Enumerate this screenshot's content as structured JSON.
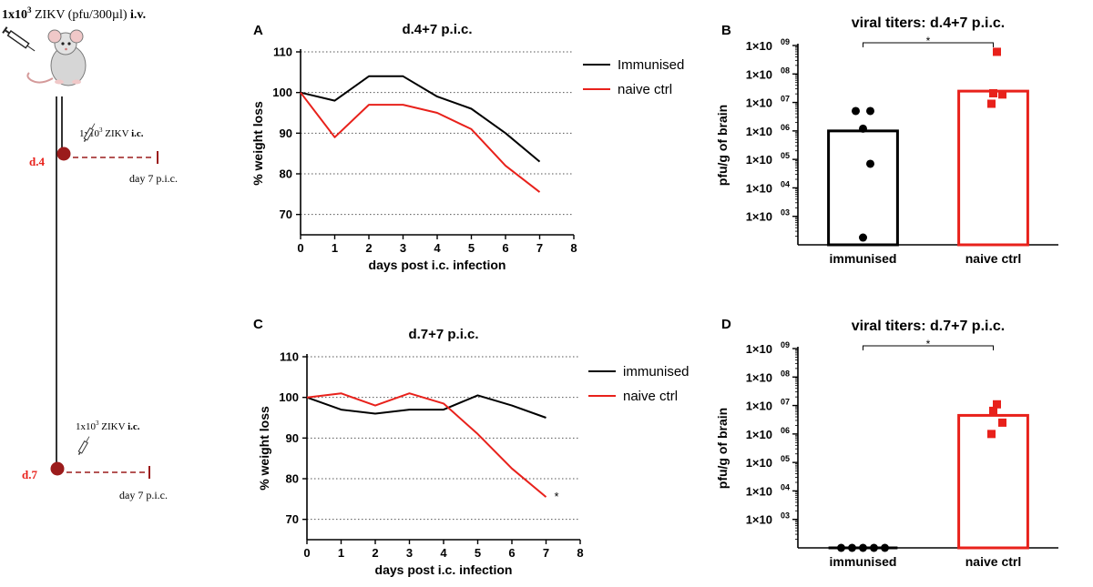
{
  "colors": {
    "black": "#000000",
    "red": "#e8211b",
    "dark_red": "#9b1b1b",
    "grid": "#555555"
  },
  "schematic": {
    "dose_prefix": "1x10",
    "dose_exp": "3",
    "dose_mid": " ZIKV (pfu/300µl) ",
    "dose_route": "i.v.",
    "syringe_icon": "syringe-icon",
    "mouse_icon": "mouse-icon",
    "challenges": [
      {
        "day_label": "d.4",
        "dose_prefix": "1x10",
        "dose_exp": "3",
        "dose_mid": " ZIKV ",
        "dose_route": "i.c.",
        "harvest_label": "day 7 p.i.c."
      },
      {
        "day_label": "d.7",
        "dose_prefix": "1x10",
        "dose_exp": "3",
        "dose_mid": " ZIKV ",
        "dose_route": "i.c.",
        "harvest_label": "day 7 p.i.c."
      }
    ]
  },
  "chart_data": [
    {
      "panel": "A",
      "type": "line",
      "title": "d.4+7 p.i.c.",
      "xlabel": "days post i.c. infection",
      "ylabel": "% weight loss",
      "xlim": [
        0,
        8
      ],
      "ylim": [
        65,
        110
      ],
      "xticks": [
        "0",
        "1",
        "2",
        "3",
        "4",
        "5",
        "6",
        "7",
        "8"
      ],
      "yticks": [
        "70",
        "80",
        "90",
        "100",
        "110"
      ],
      "grid": "horizontal dotted",
      "legend": "top-right",
      "series": [
        {
          "name": "Immunised",
          "color": "#000000",
          "x": [
            0,
            1,
            2,
            3,
            4,
            5,
            6,
            7
          ],
          "y": [
            100,
            98,
            104,
            104,
            99,
            96,
            90,
            83
          ]
        },
        {
          "name": "naive ctrl",
          "color": "#e8211b",
          "x": [
            0,
            1,
            2,
            3,
            4,
            5,
            6,
            7
          ],
          "y": [
            100,
            89,
            97,
            97,
            95,
            91,
            82,
            75.5
          ]
        }
      ]
    },
    {
      "panel": "B",
      "type": "bar",
      "title": "viral titers: d.4+7 p.i.c.",
      "ylabel": "pfu/g of brain",
      "yscale": "log",
      "ylim_log10": [
        2,
        9
      ],
      "ytick_mantissa": "1×10",
      "ytick_exps": [
        "03",
        "04",
        "05",
        "06",
        "07",
        "08",
        "09"
      ],
      "categories": [
        "immunised",
        "naive ctrl"
      ],
      "values": [
        1000000,
        25000000
      ],
      "colors": [
        "#000000",
        "#e8211b"
      ],
      "points": [
        [
          5000000,
          5000000,
          1200000,
          70000,
          180
        ],
        [
          600000000,
          21000000,
          19000000,
          9000000
        ]
      ],
      "significance": "*"
    },
    {
      "panel": "C",
      "type": "line",
      "title": "d.7+7 p.i.c.",
      "xlabel": "days post i.c. infection",
      "ylabel": "% weight loss",
      "xlim": [
        0,
        8
      ],
      "ylim": [
        65,
        110
      ],
      "xticks": [
        "0",
        "1",
        "2",
        "3",
        "4",
        "5",
        "6",
        "7",
        "8"
      ],
      "yticks": [
        "70",
        "80",
        "90",
        "100",
        "110"
      ],
      "grid": "horizontal dotted",
      "legend": "top-right",
      "series": [
        {
          "name": "immunised",
          "color": "#000000",
          "x": [
            0,
            1,
            2,
            3,
            4,
            5,
            6,
            7
          ],
          "y": [
            100,
            97,
            96,
            97,
            97,
            100.5,
            98,
            95
          ]
        },
        {
          "name": "naive ctrl",
          "color": "#e8211b",
          "x": [
            0,
            1,
            2,
            3,
            4,
            5,
            6,
            7
          ],
          "y": [
            100,
            101,
            98,
            101,
            98.5,
            91,
            82.5,
            75.5
          ]
        }
      ],
      "annotation": {
        "text": "*",
        "x": 7,
        "y": 75.5
      }
    },
    {
      "panel": "D",
      "type": "bar",
      "title": "viral titers: d.7+7 p.i.c.",
      "ylabel": "pfu/g of brain",
      "yscale": "log",
      "ylim_log10": [
        2,
        9
      ],
      "ytick_mantissa": "1×10",
      "ytick_exps": [
        "03",
        "04",
        "05",
        "06",
        "07",
        "08",
        "09"
      ],
      "categories": [
        "immunised",
        "naive ctrl"
      ],
      "values": [
        100,
        4500000
      ],
      "colors": [
        "#000000",
        "#e8211b"
      ],
      "points": [
        [
          100,
          100,
          100,
          100,
          100
        ],
        [
          11000000,
          6500000,
          2500000,
          1000000
        ]
      ],
      "significance": "*"
    }
  ]
}
